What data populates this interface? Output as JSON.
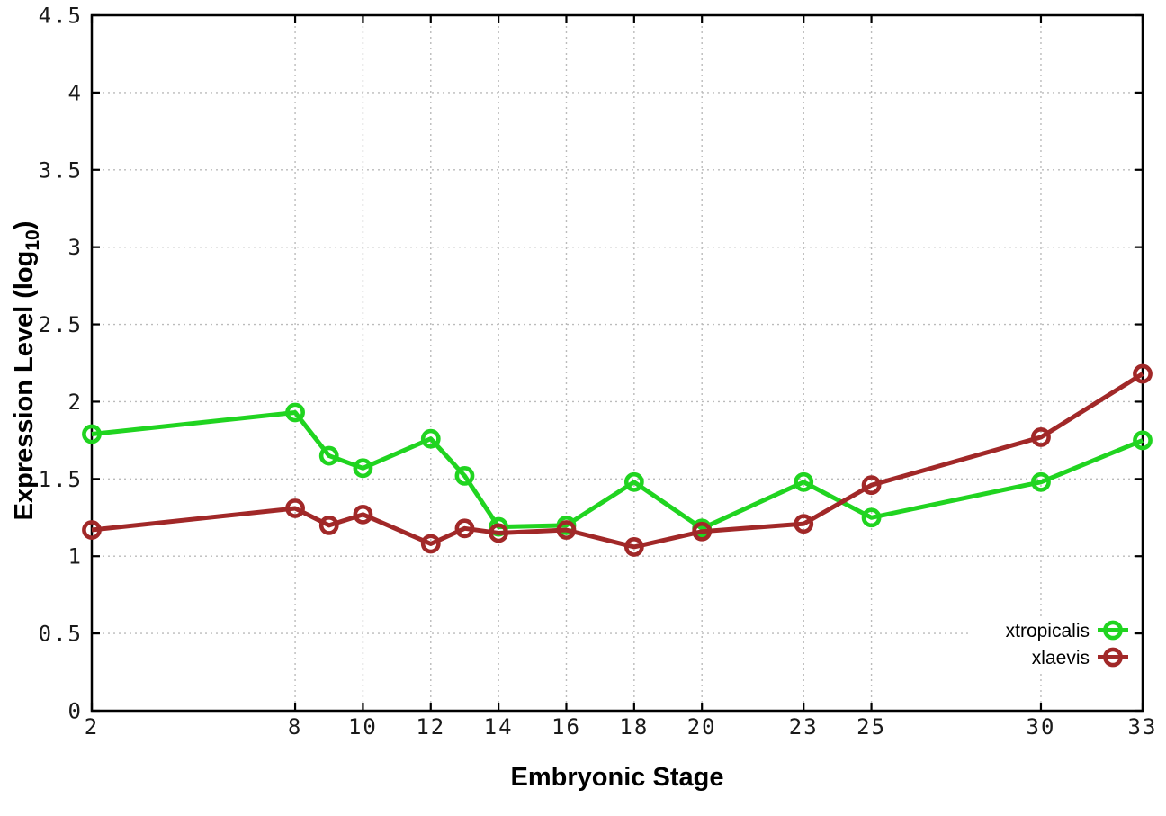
{
  "figure": {
    "background": "#ffffff"
  },
  "chart_data": {
    "type": "line",
    "title": "",
    "xlabel": "Embryonic Stage",
    "ylabel_full": "Expression Level (log10)",
    "ylabel_main": "Expression Level (log",
    "ylabel_sub": "10",
    "ylabel_close": ")",
    "x": [
      2,
      8,
      9,
      10,
      12,
      13,
      14,
      16,
      18,
      20,
      23,
      25,
      30,
      33
    ],
    "series": [
      {
        "name": "xtropicalis",
        "color": "#20d420",
        "values": [
          1.79,
          1.93,
          1.65,
          1.57,
          1.76,
          1.52,
          1.19,
          1.2,
          1.48,
          1.18,
          1.48,
          1.25,
          1.48,
          1.75
        ]
      },
      {
        "name": "xlaevis",
        "color": "#a12828",
        "values": [
          1.17,
          1.31,
          1.2,
          1.27,
          1.08,
          1.18,
          1.15,
          1.17,
          1.06,
          1.16,
          1.21,
          1.46,
          1.77,
          2.18
        ]
      }
    ],
    "xlim": [
      2,
      33
    ],
    "ylim": [
      0,
      4.5
    ],
    "xticks": [
      2,
      8,
      10,
      12,
      14,
      16,
      18,
      20,
      23,
      25,
      30,
      33
    ],
    "xtick_labels": [
      "2",
      "8",
      "10",
      "12",
      "14",
      "16",
      "18",
      "20",
      "23",
      "25",
      "30",
      "33"
    ],
    "yticks": [
      0,
      0.5,
      1,
      1.5,
      2,
      2.5,
      3,
      3.5,
      4,
      4.5
    ],
    "ytick_labels": [
      "0",
      "0.5",
      "1",
      "1.5",
      "2",
      "2.5",
      "3",
      "3.5",
      "4",
      "4.5"
    ],
    "grid": true,
    "grid_style": "dotted",
    "legend_position": "bottom-right",
    "legend_items": [
      "xtropicalis",
      "xlaevis"
    ],
    "colors": {
      "grid": "#bbbbbb",
      "axis": "#000000",
      "tick_label": "#1a1a1a",
      "background": "#ffffff"
    }
  }
}
